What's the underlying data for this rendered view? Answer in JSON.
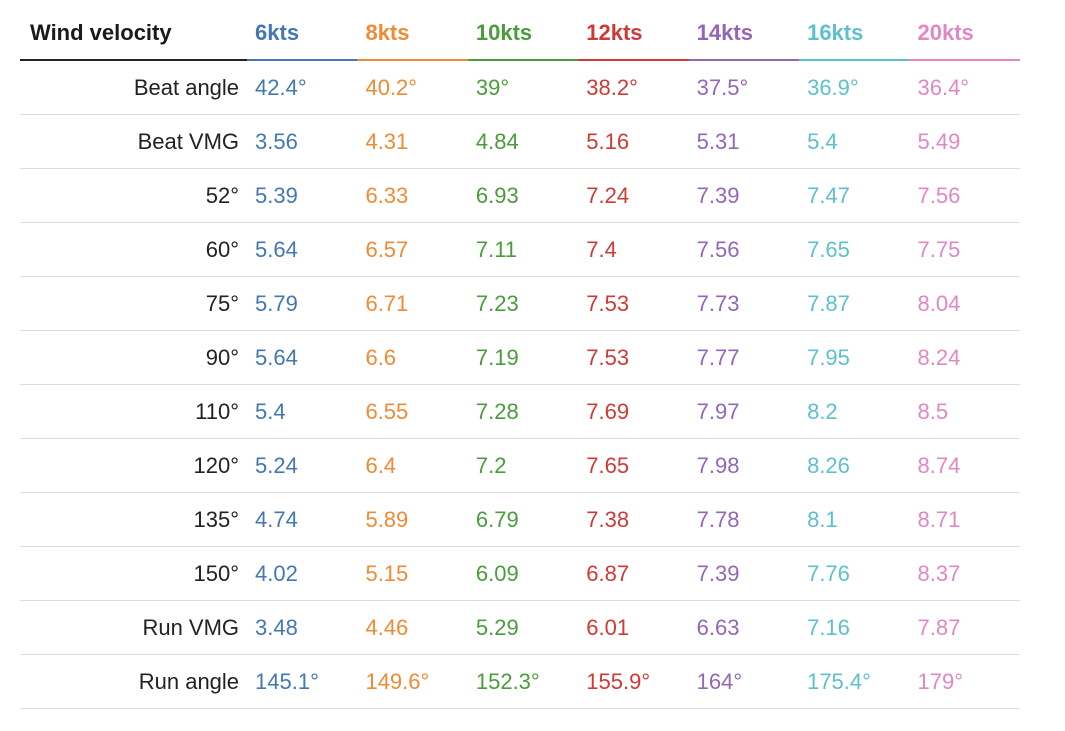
{
  "table": {
    "header_label": "Wind velocity",
    "columns": [
      {
        "label": "6kts",
        "color": "#4378b3"
      },
      {
        "label": "8kts",
        "color": "#f08a33"
      },
      {
        "label": "10kts",
        "color": "#4a9c3c"
      },
      {
        "label": "12kts",
        "color": "#cf3a36"
      },
      {
        "label": "14kts",
        "color": "#9466b8"
      },
      {
        "label": "16kts",
        "color": "#5cc1cd"
      },
      {
        "label": "20kts",
        "color": "#e287c4"
      }
    ],
    "rows": [
      {
        "label": "Beat angle",
        "values": [
          "42.4°",
          "40.2°",
          "39°",
          "38.2°",
          "37.5°",
          "36.9°",
          "36.4°"
        ]
      },
      {
        "label": "Beat VMG",
        "values": [
          "3.56",
          "4.31",
          "4.84",
          "5.16",
          "5.31",
          "5.4",
          "5.49"
        ]
      },
      {
        "label": "52°",
        "values": [
          "5.39",
          "6.33",
          "6.93",
          "7.24",
          "7.39",
          "7.47",
          "7.56"
        ]
      },
      {
        "label": "60°",
        "values": [
          "5.64",
          "6.57",
          "7.11",
          "7.4",
          "7.56",
          "7.65",
          "7.75"
        ]
      },
      {
        "label": "75°",
        "values": [
          "5.79",
          "6.71",
          "7.23",
          "7.53",
          "7.73",
          "7.87",
          "8.04"
        ]
      },
      {
        "label": "90°",
        "values": [
          "5.64",
          "6.6",
          "7.19",
          "7.53",
          "7.77",
          "7.95",
          "8.24"
        ]
      },
      {
        "label": "110°",
        "values": [
          "5.4",
          "6.55",
          "7.28",
          "7.69",
          "7.97",
          "8.2",
          "8.5"
        ]
      },
      {
        "label": "120°",
        "values": [
          "5.24",
          "6.4",
          "7.2",
          "7.65",
          "7.98",
          "8.26",
          "8.74"
        ]
      },
      {
        "label": "135°",
        "values": [
          "4.74",
          "5.89",
          "6.79",
          "7.38",
          "7.78",
          "8.1",
          "8.71"
        ]
      },
      {
        "label": "150°",
        "values": [
          "4.02",
          "5.15",
          "6.09",
          "6.87",
          "7.39",
          "7.76",
          "8.37"
        ]
      },
      {
        "label": "Run VMG",
        "values": [
          "3.48",
          "4.46",
          "5.29",
          "6.01",
          "6.63",
          "7.16",
          "7.87"
        ]
      },
      {
        "label": "Run angle",
        "values": [
          "145.1°",
          "149.6°",
          "152.3°",
          "155.9°",
          "164°",
          "175.4°",
          "179°"
        ]
      }
    ]
  }
}
